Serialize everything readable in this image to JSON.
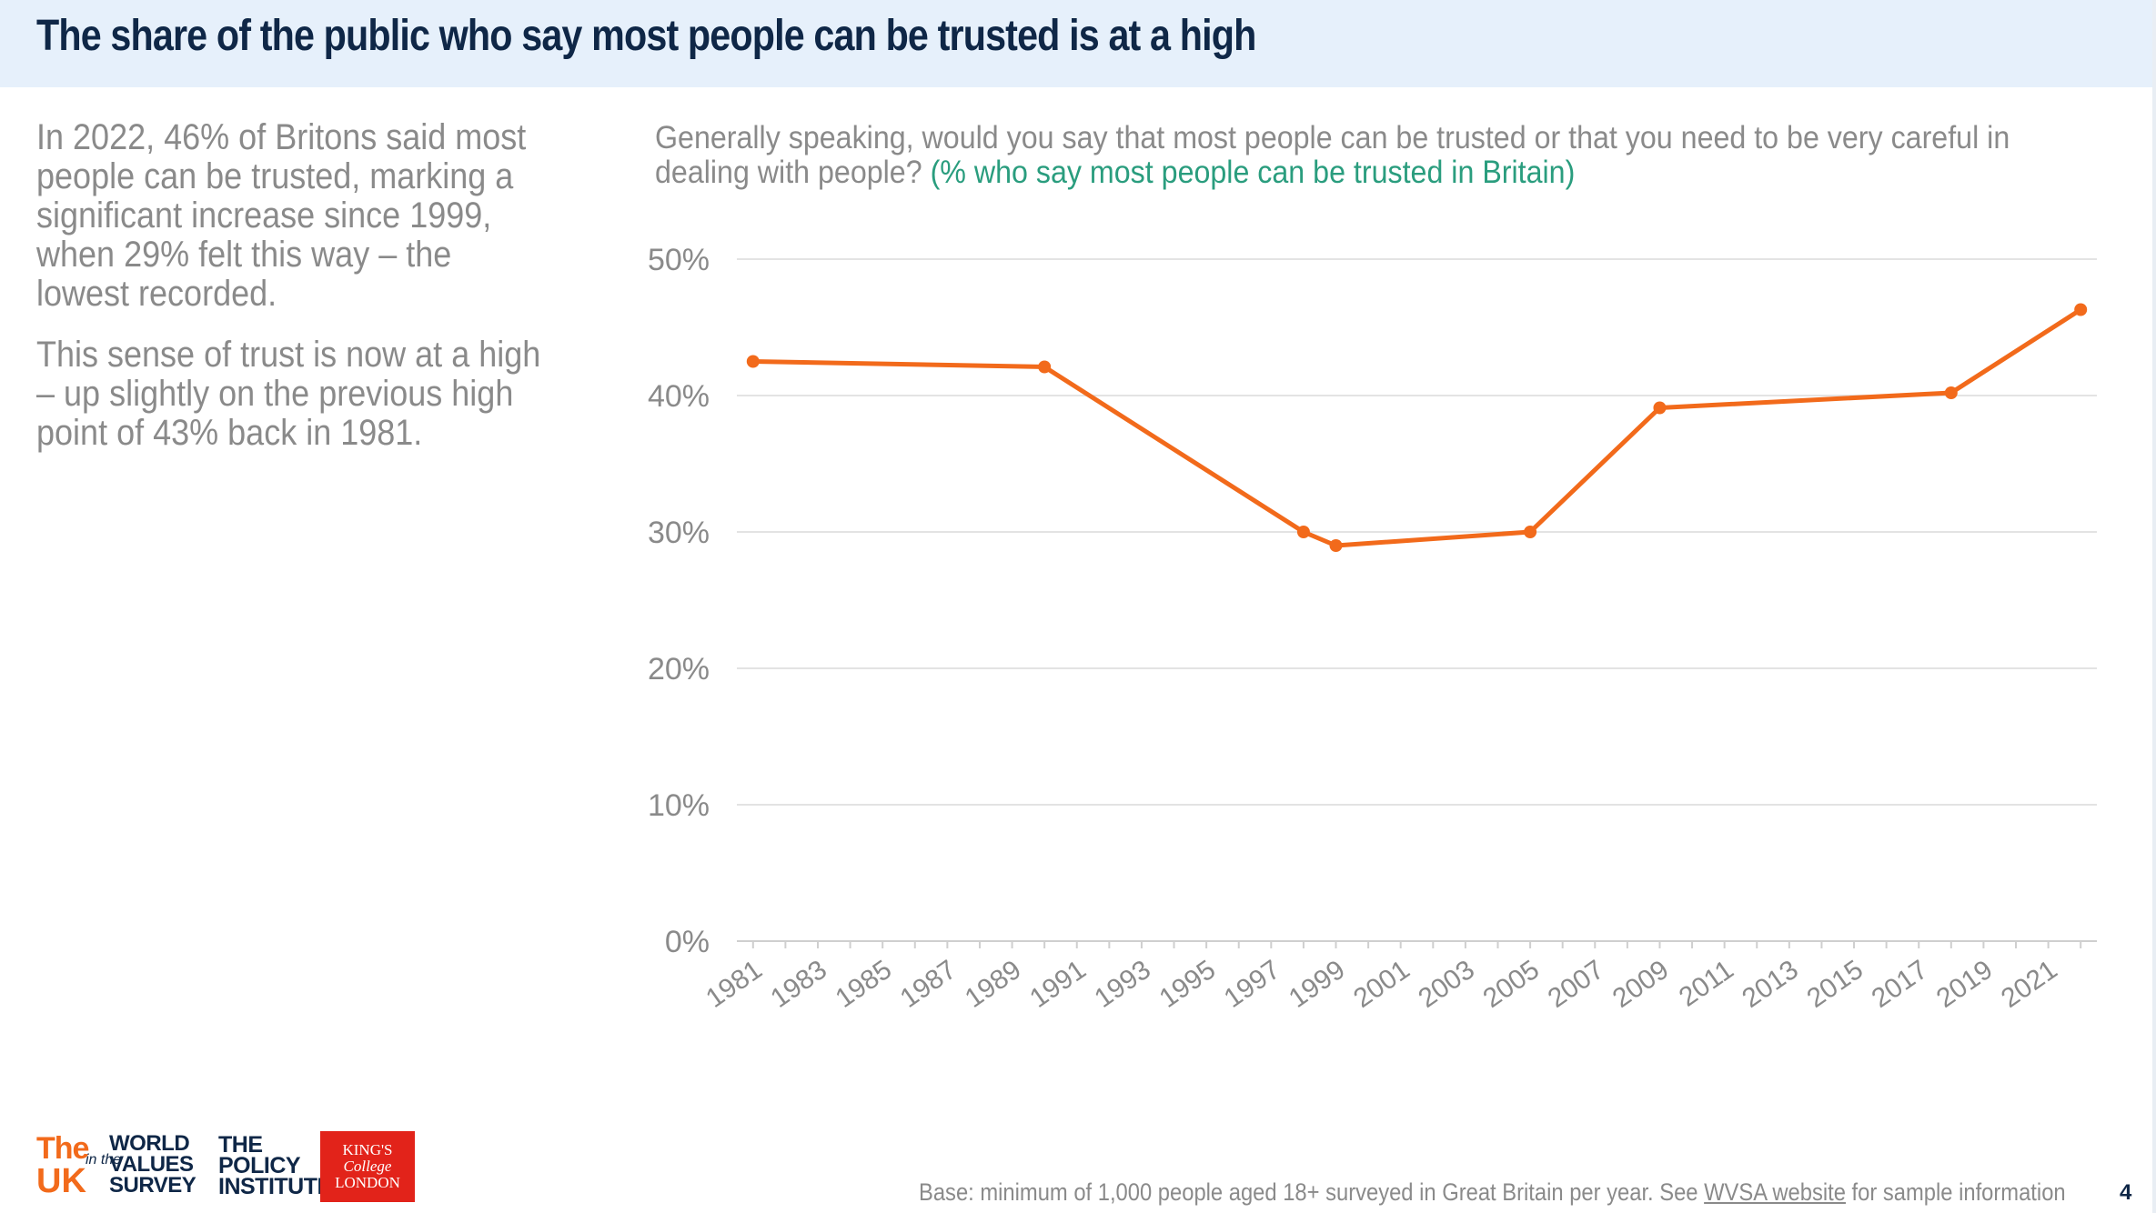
{
  "header": {
    "title": "The share of the public who say most people can be trusted is at a high"
  },
  "summary": {
    "paragraph1": "In 2022, 46% of Britons said most people can be trusted, marking a significant increase since 1999, when 29% felt this way – the lowest recorded.",
    "paragraph2": "This sense of trust is now at a high – up slightly on the previous high point of 43% back in 1981."
  },
  "question": {
    "text": "Generally speaking, would you say that most people can be trusted or that you need to be very careful in dealing with people?",
    "highlight": "(% who say most people can be trusted in Britain)"
  },
  "chart_data": {
    "type": "line",
    "x": [
      1981,
      1990,
      1998,
      1999,
      2005,
      2009,
      2018,
      2022
    ],
    "series": [
      {
        "values": [
          42.5,
          42.1,
          30.0,
          29.0,
          30.0,
          39.1,
          40.2,
          46.3
        ]
      }
    ],
    "x_tick_labels": [
      "1981",
      "1983",
      "1985",
      "1987",
      "1989",
      "1991",
      "1993",
      "1995",
      "1997",
      "1999",
      "2001",
      "2003",
      "2005",
      "2007",
      "2009",
      "2011",
      "2013",
      "2015",
      "2017",
      "2019",
      "2021"
    ],
    "y_tick_labels": [
      "0%",
      "10%",
      "20%",
      "30%",
      "40%",
      "50%"
    ],
    "xlim": [
      1981,
      2022
    ],
    "ylim": [
      0,
      50
    ],
    "grid": true,
    "line_color": "#f26a1b"
  },
  "footer": {
    "base_prefix": "Base: minimum of 1,000 people aged 18+ surveyed in Great Britain per year. See ",
    "base_link": "WVSA website",
    "base_suffix": " for sample information",
    "page_number": "4"
  },
  "logos": {
    "uk_the": "The",
    "uk_uk": "UK",
    "uk_inthe": "in the",
    "wvs_line1": "WORLD",
    "wvs_line2": "VALUES",
    "wvs_line3": "SURVEY",
    "pi_line1": "THE",
    "pi_line2": "POLICY",
    "pi_line3": "INSTITUTE",
    "kcl_line1": "KING'S",
    "kcl_line2": "College",
    "kcl_line3": "LONDON"
  }
}
